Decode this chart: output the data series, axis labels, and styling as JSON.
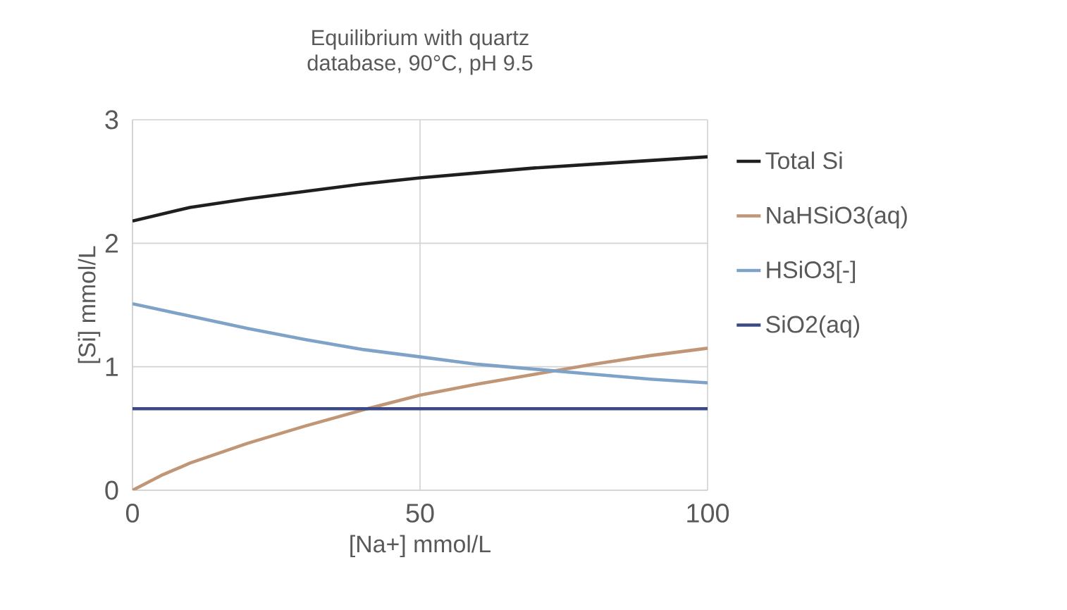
{
  "chart_data": {
    "type": "line",
    "title": "Equilibrium with quartz",
    "subtitle": "database, 90°C, pH 9.5",
    "xlabel": "[Na+] mmol/L",
    "ylabel": "[Si] mmol/L",
    "xlim": [
      0,
      100
    ],
    "xticks": [
      0,
      50,
      100
    ],
    "ylim": [
      0,
      3
    ],
    "yticks": [
      0,
      1,
      2,
      3
    ],
    "grid": true,
    "legend": "right",
    "marker": "none",
    "line_style": "solid",
    "series": [
      {
        "name": "Total Si",
        "color": "#1f1f1f",
        "x": [
          0,
          10,
          20,
          30,
          40,
          50,
          60,
          70,
          80,
          90,
          100
        ],
        "values": [
          2.18,
          2.29,
          2.36,
          2.42,
          2.48,
          2.53,
          2.57,
          2.61,
          2.64,
          2.67,
          2.7
        ]
      },
      {
        "name": "NaHSiO3(aq)",
        "color": "#c09676",
        "x": [
          0,
          5,
          10,
          20,
          30,
          40,
          50,
          60,
          70,
          80,
          90,
          100
        ],
        "values": [
          0,
          0.12,
          0.22,
          0.38,
          0.52,
          0.65,
          0.77,
          0.86,
          0.94,
          1.02,
          1.09,
          1.15
        ]
      },
      {
        "name": "HSiO3[-]",
        "color": "#7fa3c8",
        "x": [
          0,
          10,
          20,
          30,
          40,
          50,
          60,
          70,
          80,
          90,
          100
        ],
        "values": [
          1.51,
          1.41,
          1.31,
          1.22,
          1.14,
          1.08,
          1.02,
          0.98,
          0.94,
          0.9,
          0.87
        ]
      },
      {
        "name": "SiO2(aq)",
        "color": "#3b4a86",
        "x": [
          0,
          100
        ],
        "values": [
          0.66,
          0.66
        ]
      }
    ]
  }
}
